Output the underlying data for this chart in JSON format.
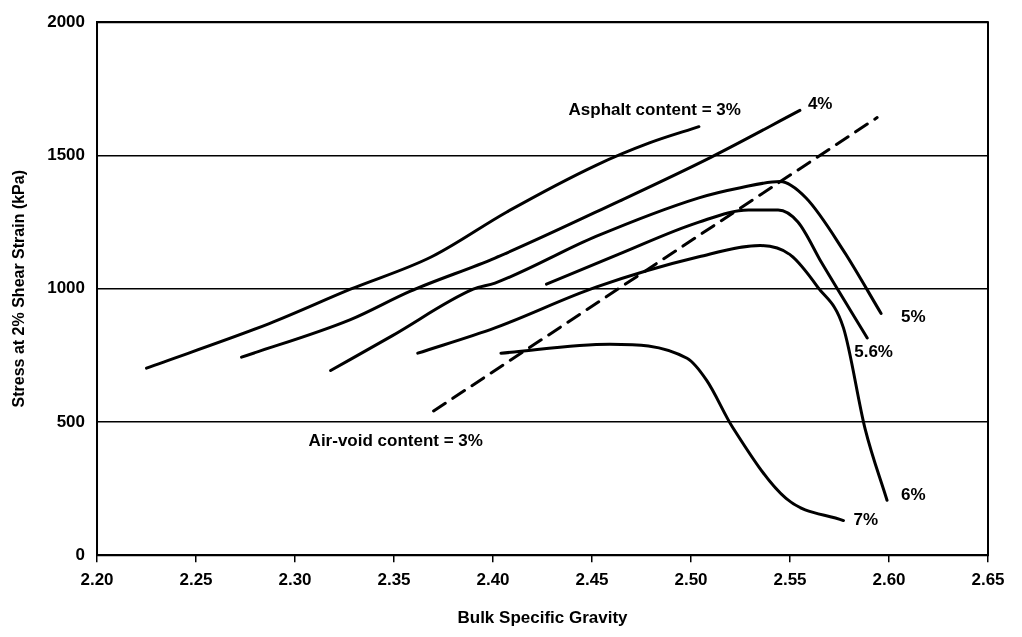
{
  "chart_data": {
    "type": "line",
    "xlabel": "Bulk Specific Gravity",
    "ylabel": "Stress at 2% Shear Strain (kPa)",
    "xlim": [
      2.2,
      2.65
    ],
    "xticks": [
      {
        "value": 2.2,
        "label": "2.20"
      },
      {
        "value": 2.25,
        "label": "2.25"
      },
      {
        "value": 2.3,
        "label": "2.30"
      },
      {
        "value": 2.35,
        "label": "2.35"
      },
      {
        "value": 2.4,
        "label": "2.40"
      },
      {
        "value": 2.45,
        "label": "2.45"
      },
      {
        "value": 2.5,
        "label": "2.50"
      },
      {
        "value": 2.55,
        "label": "2.55"
      },
      {
        "value": 2.6,
        "label": "2.60"
      },
      {
        "value": 2.65,
        "label": "2.65"
      }
    ],
    "ylim": [
      0,
      2000
    ],
    "yticks": [
      0,
      500,
      1000,
      1500,
      2000
    ],
    "grid": "y",
    "legend": false,
    "marker": "none",
    "series": [
      {
        "name": "Asphalt content = 3%",
        "color": "#000000",
        "line_style": "solid",
        "x": [
          2.225,
          2.287,
          2.328,
          2.369,
          2.407,
          2.452,
          2.479,
          2.504
        ],
        "values": [
          702,
          869,
          998,
          1120,
          1288,
          1463,
          1547,
          1608
        ]
      },
      {
        "name": "4%",
        "color": "#000000",
        "line_style": "solid",
        "x": [
          2.273,
          2.328,
          2.358,
          2.401,
          2.463,
          2.51,
          2.555
        ],
        "values": [
          743,
          884,
          990,
          1115,
          1326,
          1493,
          1669
        ]
      },
      {
        "name": "5%",
        "color": "#000000",
        "line_style": "solid",
        "x": [
          2.318,
          2.349,
          2.39,
          2.401,
          2.452,
          2.504,
          2.525,
          2.545,
          2.558,
          2.577,
          2.596
        ],
        "values": [
          693,
          823,
          998,
          1021,
          1196,
          1341,
          1379,
          1402,
          1341,
          1143,
          907
        ]
      },
      {
        "name": "5.6%",
        "color": "#000000",
        "line_style": "solid",
        "x": [
          2.427,
          2.463,
          2.504,
          2.529,
          2.544,
          2.554,
          2.566,
          2.589
        ],
        "values": [
          1017,
          1128,
          1250,
          1295,
          1295,
          1250,
          1097,
          815
        ]
      },
      {
        "name": "6%",
        "color": "#000000",
        "line_style": "solid",
        "x": [
          2.362,
          2.401,
          2.452,
          2.504,
          2.535,
          2.55,
          2.564,
          2.577,
          2.588,
          2.599
        ],
        "values": [
          758,
          853,
          1006,
          1120,
          1162,
          1128,
          1006,
          853,
          472,
          206
        ]
      },
      {
        "name": "7%",
        "color": "#000000",
        "line_style": "solid",
        "x": [
          2.404,
          2.459,
          2.498,
          2.508,
          2.521,
          2.548,
          2.577
        ],
        "values": [
          758,
          792,
          739,
          655,
          480,
          213,
          130
        ]
      },
      {
        "name": "Air-void content = 3%",
        "color": "#000000",
        "line_style": "dashed",
        "x": [
          2.37,
          2.594
        ],
        "values": [
          541,
          1642
        ]
      }
    ]
  }
}
